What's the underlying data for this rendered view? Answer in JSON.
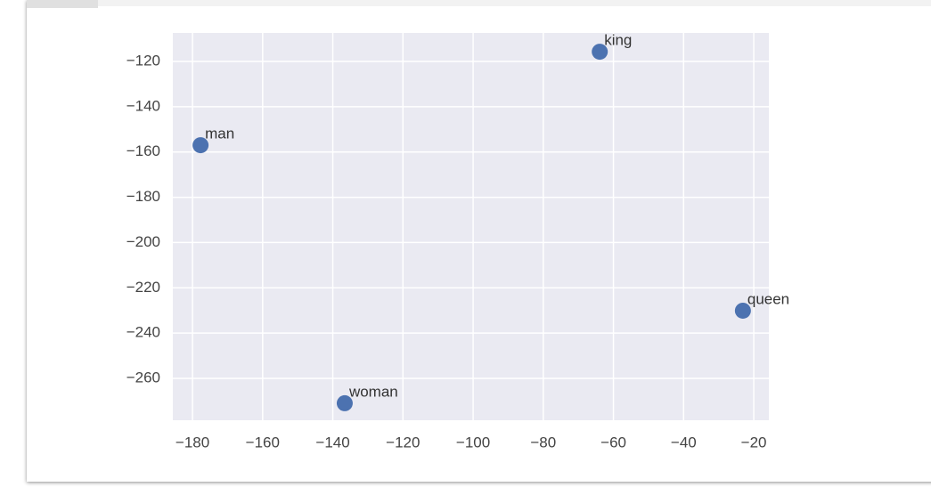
{
  "chart_data": {
    "type": "scatter",
    "x": [
      -63.9,
      -177.7,
      -23.1,
      -136.6
    ],
    "values": [
      -115.7,
      -157.0,
      -230.1,
      -271.0
    ],
    "labels": [
      "king",
      "man",
      "queen",
      "woman"
    ],
    "color": "#4c72b0",
    "xlim": [
      -185.6,
      -15.7
    ],
    "ylim": [
      -278.5,
      -107.4
    ],
    "xticks": [
      {
        "value": -180,
        "label": "−180"
      },
      {
        "value": -160,
        "label": "−160"
      },
      {
        "value": -140,
        "label": "−140"
      },
      {
        "value": -120,
        "label": "−120"
      },
      {
        "value": -100,
        "label": "−100"
      },
      {
        "value": -80,
        "label": "−80"
      },
      {
        "value": -60,
        "label": "−60"
      },
      {
        "value": -40,
        "label": "−40"
      },
      {
        "value": -20,
        "label": "−20"
      }
    ],
    "yticks": [
      {
        "value": -120,
        "label": "−120"
      },
      {
        "value": -140,
        "label": "−140"
      },
      {
        "value": -160,
        "label": "−160"
      },
      {
        "value": -180,
        "label": "−180"
      },
      {
        "value": -200,
        "label": "−200"
      },
      {
        "value": -220,
        "label": "−220"
      },
      {
        "value": -240,
        "label": "−240"
      },
      {
        "value": -260,
        "label": "−260"
      }
    ],
    "grid": true
  }
}
